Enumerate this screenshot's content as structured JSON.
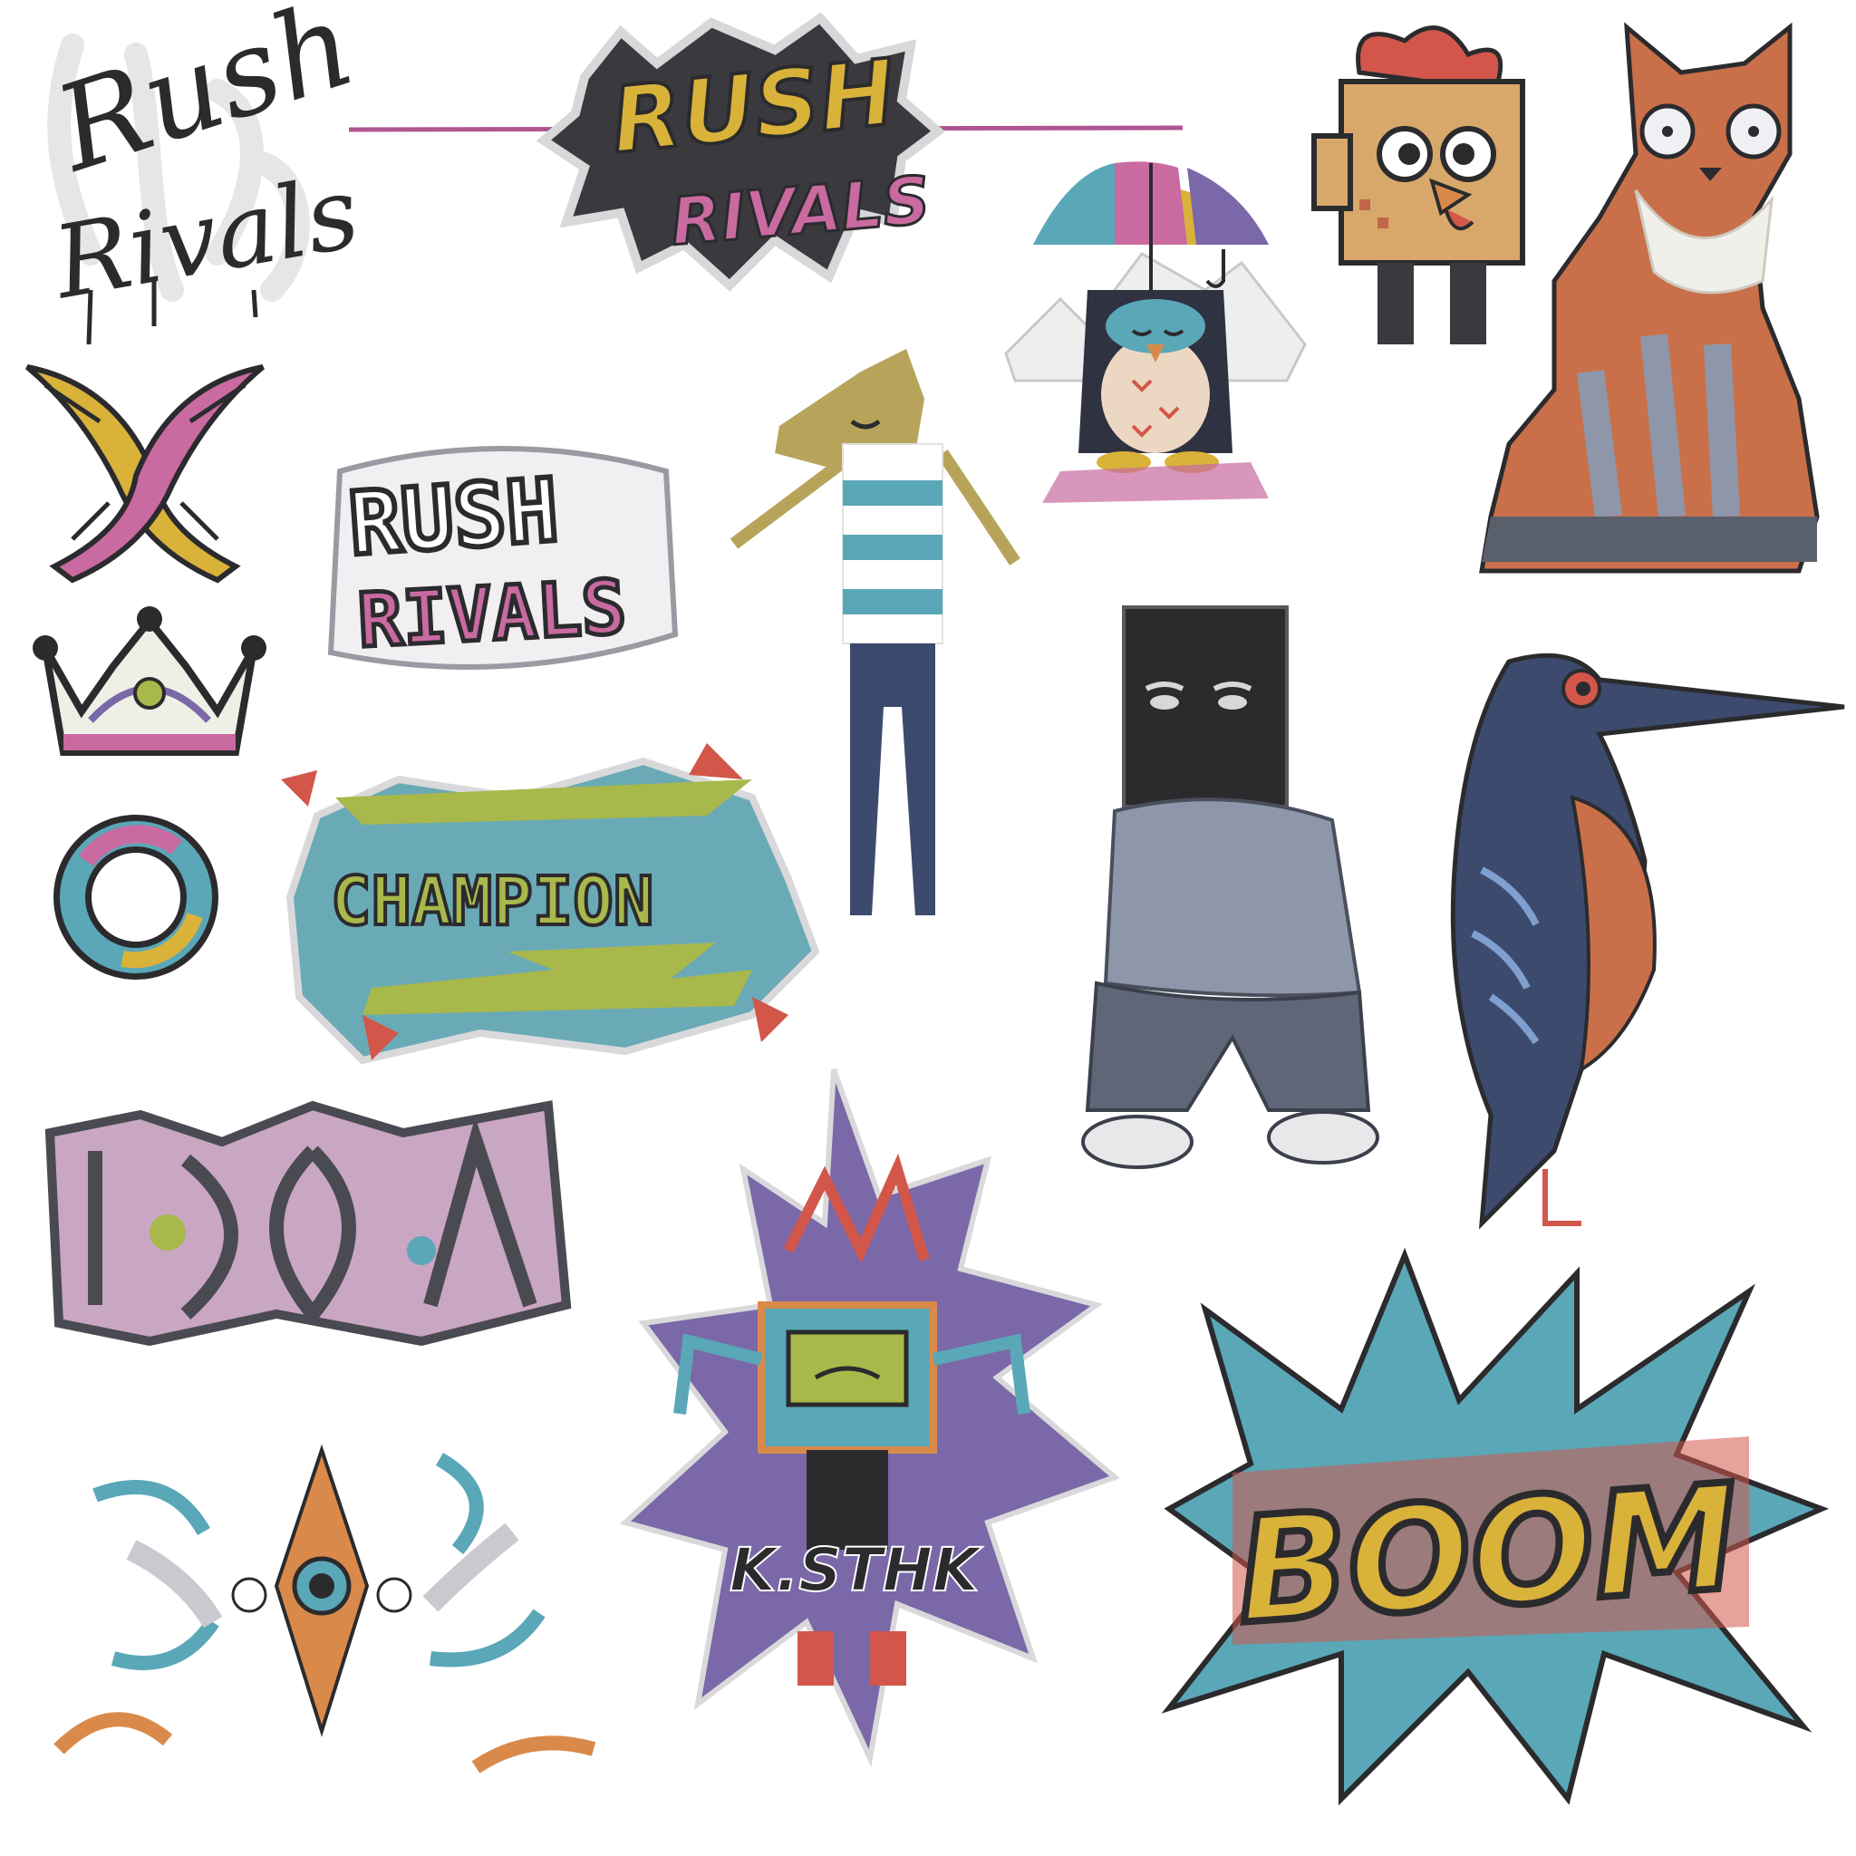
{
  "stickers": {
    "rush_rivals_script": {
      "line1": "Rush",
      "line2": "Rivals"
    },
    "rush_rivals_splat": {
      "line1": "RUSH",
      "line2": "RIVALS"
    },
    "rush_rivals_graffiti": {
      "line1": "RUSH",
      "line2": "RIVALS"
    },
    "champion_banner": {
      "text": "CHAMPION"
    },
    "robot_burst": {
      "text": "K.STHK"
    },
    "boom_burst": {
      "text": "BOOM"
    }
  },
  "icons": [
    "crossed-wings-icon",
    "crown-icon",
    "ring-icon",
    "penguin-umbrella-icon",
    "pixel-chicken-icon",
    "fox-icon",
    "stick-figure-icon",
    "box-head-figure-icon",
    "bird-icon",
    "graffiti-tag-icon",
    "robot-icon",
    "abstract-splash-icon"
  ],
  "palette": {
    "ink": "#2b2b2e",
    "pink": "#c96aa0",
    "yellow": "#d9b23a",
    "teal": "#5aa7b8",
    "orange": "#d98a4a",
    "purple": "#7a68a8",
    "navy": "#3c4a6e",
    "red": "#d2574a",
    "lime": "#a8b84a",
    "grey": "#9aa0ad"
  }
}
